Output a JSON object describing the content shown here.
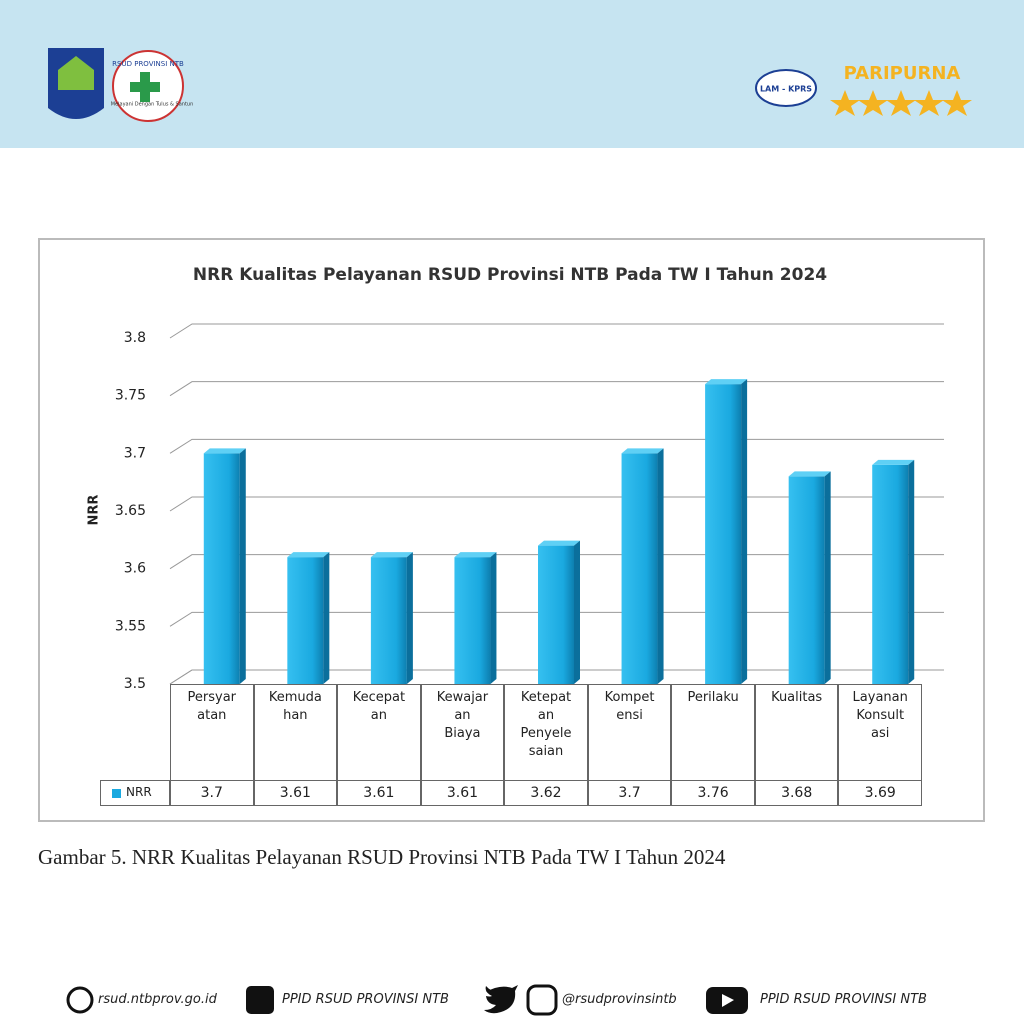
{
  "header": {
    "hospital_logo_text": "RSUD PROVINSI NTB",
    "hospital_motto": "Melayani Dengan Tulus & Santun",
    "accreditor": "LAM - KPRS",
    "accreditation": "PARIPURNA"
  },
  "chart_data": {
    "type": "bar",
    "title": "NRR Kualitas Pelayanan RSUD Provinsi NTB Pada TW I Tahun 2024",
    "y_label": "NRR",
    "categories": [
      "Persyar\natan",
      "Kemuda\nhan",
      "Kecepat\nan",
      "Kewajar\nan\nBiaya",
      "Ketepat\nan\nPenyele\nsaian",
      "Kompet\nensi",
      "Perilaku",
      "Kualitas",
      "Layanan\nKonsult\nasi"
    ],
    "series": [
      {
        "name": "NRR",
        "color": "#1aa9e0",
        "values": [
          3.7,
          3.61,
          3.61,
          3.61,
          3.62,
          3.7,
          3.76,
          3.68,
          3.69
        ]
      }
    ],
    "ylim": [
      3.5,
      3.8
    ],
    "yticks": [
      3.5,
      3.55,
      3.6,
      3.65,
      3.7,
      3.75,
      3.8
    ],
    "grid": true
  },
  "caption": "Gambar 5. NRR Kualitas Pelayanan RSUD Provinsi NTB Pada TW I Tahun 2024",
  "footer": {
    "website": "rsud.ntbprov.go.id",
    "facebook": "PPID RSUD PROVINSI NTB",
    "social_handle": "@rsudprovinsintb",
    "youtube": "PPID RSUD PROVINSI NTB"
  }
}
